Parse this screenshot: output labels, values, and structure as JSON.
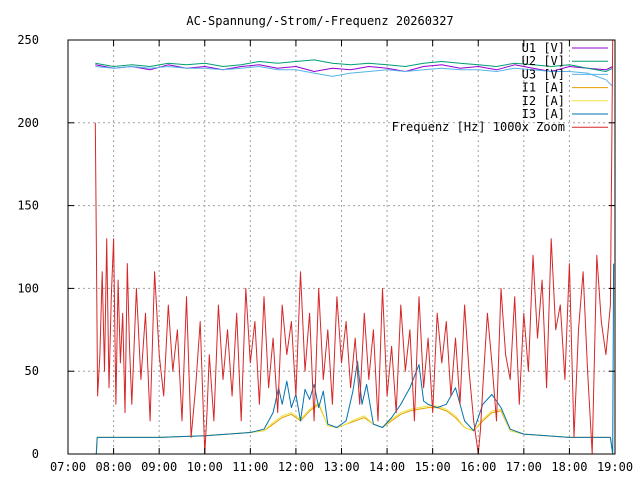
{
  "chart_data": {
    "type": "line",
    "title": "AC-Spannung/-Strom/-Frequenz 20260327",
    "xlabel": "",
    "ylabel": "",
    "x_unit": "hour",
    "xlim": [
      7.0,
      19.0
    ],
    "ylim": [
      0,
      250
    ],
    "grid": true,
    "legend_position": "top-right",
    "x_ticks": [
      {
        "value": 7,
        "label": "07:00"
      },
      {
        "value": 8,
        "label": "08:00"
      },
      {
        "value": 9,
        "label": "09:00"
      },
      {
        "value": 10,
        "label": "10:00"
      },
      {
        "value": 11,
        "label": "11:00"
      },
      {
        "value": 12,
        "label": "12:00"
      },
      {
        "value": 13,
        "label": "13:00"
      },
      {
        "value": 14,
        "label": "14:00"
      },
      {
        "value": 15,
        "label": "15:00"
      },
      {
        "value": 16,
        "label": "16:00"
      },
      {
        "value": 17,
        "label": "17:00"
      },
      {
        "value": 18,
        "label": "18:00"
      },
      {
        "value": 19,
        "label": "19:00"
      }
    ],
    "y_ticks": [
      {
        "value": 0,
        "label": "0"
      },
      {
        "value": 50,
        "label": "50"
      },
      {
        "value": 100,
        "label": "100"
      },
      {
        "value": 150,
        "label": "150"
      },
      {
        "value": 200,
        "label": "200"
      },
      {
        "value": 250,
        "label": "250"
      }
    ],
    "series": [
      {
        "name": "U1 [V]",
        "color": "#9400d3",
        "x": [
          7.6,
          8.0,
          8.4,
          8.8,
          9.2,
          9.6,
          10.0,
          10.4,
          10.8,
          11.2,
          11.6,
          12.0,
          12.4,
          12.8,
          13.2,
          13.6,
          14.0,
          14.4,
          14.8,
          15.2,
          15.6,
          16.0,
          16.4,
          16.8,
          17.2,
          17.6,
          18.0,
          18.4,
          18.8,
          18.95
        ],
        "values": [
          235,
          233,
          234,
          232,
          235,
          233,
          234,
          232,
          234,
          235,
          233,
          234,
          231,
          233,
          232,
          234,
          233,
          231,
          234,
          235,
          233,
          234,
          232,
          235,
          233,
          231,
          234,
          233,
          232,
          234
        ]
      },
      {
        "name": "U2 [V]",
        "color": "#009e73",
        "x": [
          7.6,
          8.0,
          8.4,
          8.8,
          9.2,
          9.6,
          10.0,
          10.4,
          10.8,
          11.2,
          11.6,
          12.0,
          12.4,
          12.8,
          13.2,
          13.6,
          14.0,
          14.4,
          14.8,
          15.2,
          15.6,
          16.0,
          16.4,
          16.8,
          17.2,
          17.6,
          18.0,
          18.4,
          18.8,
          18.95
        ],
        "values": [
          236,
          234,
          235,
          234,
          236,
          235,
          236,
          234,
          235,
          237,
          236,
          237,
          238,
          236,
          235,
          236,
          235,
          234,
          236,
          237,
          236,
          235,
          234,
          236,
          235,
          234,
          235,
          233,
          231,
          233
        ]
      },
      {
        "name": "U3 [V]",
        "color": "#56b4e9",
        "x": [
          7.6,
          8.0,
          8.4,
          8.8,
          9.2,
          9.6,
          10.0,
          10.4,
          10.8,
          11.2,
          11.6,
          12.0,
          12.4,
          12.8,
          13.2,
          13.6,
          14.0,
          14.4,
          14.8,
          15.2,
          15.6,
          16.0,
          16.4,
          16.8,
          17.2,
          17.6,
          18.0,
          18.4,
          18.8,
          18.95
        ],
        "values": [
          234,
          233,
          234,
          233,
          234,
          233,
          233,
          232,
          233,
          234,
          232,
          232,
          230,
          228,
          230,
          231,
          232,
          231,
          232,
          233,
          232,
          232,
          231,
          233,
          232,
          231,
          231,
          230,
          226,
          222
        ]
      },
      {
        "name": "I1 [A]",
        "color": "#e69f00",
        "x": [
          7.62,
          7.64,
          8.0,
          9.0,
          10.0,
          10.5,
          11.0,
          11.3,
          11.5,
          11.7,
          11.9,
          12.1,
          12.3,
          12.5,
          12.7,
          12.9,
          13.1,
          13.3,
          13.5,
          13.7,
          13.9,
          14.1,
          14.3,
          14.5,
          14.7,
          14.9,
          15.1,
          15.3,
          15.5,
          15.7,
          15.9,
          16.1,
          16.3,
          16.5,
          16.7,
          17.0,
          17.5,
          18.0,
          18.5,
          18.9,
          18.95
        ],
        "values": [
          0,
          10,
          10,
          10,
          11,
          12,
          13,
          14,
          18,
          22,
          24,
          20,
          26,
          30,
          17,
          16,
          18,
          20,
          22,
          18,
          16,
          20,
          24,
          26,
          27,
          28,
          28,
          26,
          22,
          16,
          14,
          20,
          25,
          26,
          14,
          12,
          11,
          10,
          10,
          10,
          0
        ]
      },
      {
        "name": "I2 [A]",
        "color": "#f0e442",
        "x": [
          7.62,
          7.64,
          8.0,
          9.0,
          10.0,
          10.5,
          11.0,
          11.3,
          11.5,
          11.7,
          11.9,
          12.1,
          12.3,
          12.5,
          12.7,
          12.9,
          13.1,
          13.3,
          13.5,
          13.7,
          13.9,
          14.1,
          14.3,
          14.5,
          14.7,
          14.9,
          15.1,
          15.3,
          15.5,
          15.7,
          15.9,
          16.1,
          16.3,
          16.5,
          16.7,
          17.0,
          17.5,
          18.0,
          18.5,
          18.9,
          18.95
        ],
        "values": [
          0,
          10,
          10,
          10,
          11,
          12,
          13,
          14,
          19,
          23,
          25,
          21,
          27,
          31,
          17,
          16,
          18,
          21,
          23,
          18,
          16,
          21,
          25,
          27,
          28,
          29,
          29,
          27,
          23,
          16,
          14,
          21,
          26,
          27,
          14,
          12,
          11,
          10,
          10,
          10,
          0
        ]
      },
      {
        "name": "I3 [A]",
        "color": "#0072b2",
        "x": [
          7.62,
          7.64,
          8.0,
          9.0,
          10.0,
          10.5,
          11.0,
          11.3,
          11.5,
          11.62,
          11.7,
          11.8,
          11.9,
          12.0,
          12.1,
          12.2,
          12.3,
          12.4,
          12.5,
          12.6,
          12.7,
          12.9,
          13.1,
          13.25,
          13.35,
          13.45,
          13.55,
          13.7,
          13.9,
          14.1,
          14.3,
          14.5,
          14.7,
          14.8,
          14.9,
          15.1,
          15.3,
          15.5,
          15.7,
          15.9,
          16.1,
          16.3,
          16.5,
          16.7,
          17.0,
          17.5,
          18.0,
          18.5,
          18.9,
          18.95,
          18.97
        ],
        "values": [
          0,
          10,
          10,
          10,
          11,
          12,
          13,
          15,
          25,
          40,
          30,
          44,
          28,
          36,
          20,
          39,
          33,
          42,
          28,
          38,
          18,
          16,
          20,
          38,
          56,
          30,
          42,
          18,
          16,
          22,
          30,
          40,
          54,
          32,
          30,
          28,
          30,
          40,
          20,
          14,
          30,
          36,
          28,
          15,
          12,
          11,
          10,
          10,
          10,
          0,
          115
        ]
      },
      {
        "name": "Frequenz [Hz] 1000x Zoom",
        "color": "#d62728",
        "x": [
          7.6,
          7.62,
          7.65,
          7.7,
          7.75,
          7.8,
          7.85,
          7.9,
          7.95,
          8.0,
          8.05,
          8.1,
          8.15,
          8.2,
          8.25,
          8.3,
          8.35,
          8.4,
          8.5,
          8.6,
          8.7,
          8.8,
          8.9,
          9.0,
          9.1,
          9.2,
          9.3,
          9.4,
          9.5,
          9.6,
          9.7,
          9.8,
          9.9,
          10.0,
          10.05,
          10.1,
          10.2,
          10.3,
          10.4,
          10.5,
          10.6,
          10.7,
          10.8,
          10.9,
          11.0,
          11.1,
          11.2,
          11.3,
          11.4,
          11.5,
          11.6,
          11.7,
          11.8,
          11.9,
          12.0,
          12.1,
          12.2,
          12.3,
          12.4,
          12.5,
          12.6,
          12.7,
          12.8,
          12.9,
          13.0,
          13.1,
          13.2,
          13.3,
          13.4,
          13.5,
          13.6,
          13.7,
          13.8,
          13.9,
          14.0,
          14.1,
          14.2,
          14.3,
          14.4,
          14.5,
          14.6,
          14.7,
          14.8,
          14.9,
          15.0,
          15.1,
          15.2,
          15.3,
          15.4,
          15.5,
          15.6,
          15.7,
          15.8,
          15.9,
          16.0,
          16.05,
          16.1,
          16.2,
          16.3,
          16.4,
          16.5,
          16.6,
          16.7,
          16.8,
          16.9,
          17.0,
          17.1,
          17.2,
          17.3,
          17.4,
          17.5,
          17.6,
          17.7,
          17.8,
          17.9,
          18.0,
          18.1,
          18.2,
          18.3,
          18.4,
          18.5,
          18.6,
          18.7,
          18.8,
          18.9,
          18.95
        ],
        "values": [
          200,
          130,
          35,
          60,
          110,
          50,
          130,
          40,
          95,
          130,
          30,
          105,
          55,
          85,
          25,
          115,
          65,
          30,
          100,
          45,
          85,
          20,
          110,
          60,
          35,
          90,
          50,
          75,
          20,
          95,
          10,
          40,
          80,
          0,
          25,
          60,
          20,
          90,
          45,
          75,
          35,
          85,
          20,
          100,
          55,
          80,
          30,
          95,
          40,
          70,
          25,
          90,
          60,
          80,
          35,
          110,
          50,
          85,
          20,
          100,
          45,
          75,
          30,
          95,
          55,
          80,
          40,
          70,
          30,
          85,
          45,
          75,
          20,
          100,
          35,
          65,
          25,
          90,
          50,
          75,
          20,
          95,
          40,
          70,
          25,
          85,
          55,
          80,
          35,
          70,
          30,
          90,
          50,
          20,
          0,
          15,
          40,
          85,
          55,
          20,
          100,
          60,
          45,
          95,
          30,
          85,
          50,
          120,
          70,
          105,
          40,
          130,
          75,
          90,
          45,
          115,
          10,
          75,
          110,
          50,
          0,
          120,
          80,
          60,
          90,
          250
        ]
      }
    ]
  }
}
